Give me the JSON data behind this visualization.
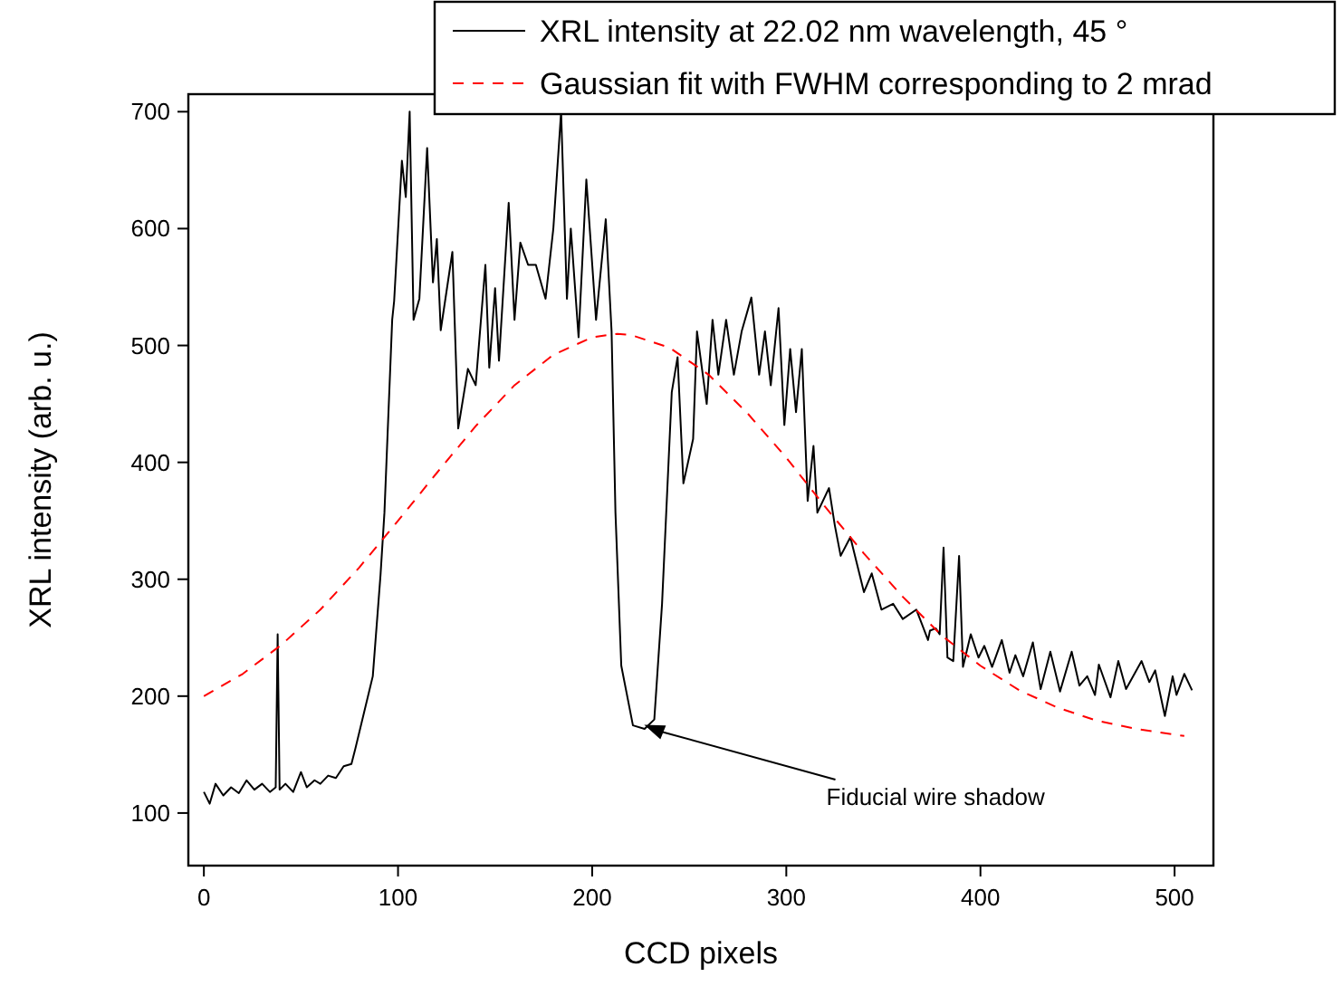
{
  "chart_data": {
    "type": "line",
    "xlabel": "CCD pixels",
    "ylabel": "XRL intensity (arb. u.)",
    "xlim": [
      -8,
      520
    ],
    "ylim": [
      55,
      715
    ],
    "xticks": [
      0,
      100,
      200,
      300,
      400,
      500
    ],
    "yticks": [
      100,
      200,
      300,
      400,
      500,
      600,
      700
    ],
    "legend": "top right",
    "grid": false,
    "series": [
      {
        "name": "XRL intensity at 22.02 nm wavelength, 45 °",
        "color": "#000000",
        "line_style": "solid",
        "x": [
          0,
          3,
          6,
          10,
          14,
          18,
          22,
          26,
          30,
          34,
          37,
          38,
          39,
          42,
          46,
          50,
          53,
          57,
          60,
          64,
          68,
          72,
          76,
          78,
          87,
          91,
          93,
          97,
          98,
          102,
          104,
          106,
          108,
          111,
          115,
          118,
          120,
          122,
          128,
          131,
          136,
          140,
          145,
          147,
          150,
          152,
          157,
          160,
          163,
          167,
          171,
          176,
          180,
          184,
          187,
          189,
          193,
          197,
          202,
          207,
          210,
          212,
          215,
          221,
          227,
          232,
          236,
          241,
          244,
          247,
          252,
          254,
          259,
          262,
          265,
          269,
          273,
          277,
          282,
          286,
          289,
          292,
          296,
          299,
          302,
          305,
          308,
          311,
          314,
          316,
          322,
          325,
          328,
          333,
          340,
          344,
          349,
          355,
          360,
          367,
          373,
          374,
          377,
          379,
          381,
          383,
          386,
          389,
          391,
          395,
          399,
          402,
          406,
          411,
          415,
          418,
          422,
          427,
          431,
          436,
          441,
          447,
          451,
          455,
          459,
          461,
          467,
          471,
          475,
          483,
          487,
          490,
          495,
          499,
          501,
          505,
          509
        ],
        "values": [
          118,
          108,
          125,
          115,
          122,
          117,
          128,
          120,
          125,
          118,
          122,
          253,
          120,
          125,
          118,
          135,
          122,
          128,
          125,
          132,
          130,
          140,
          142,
          155,
          217,
          304,
          357,
          522,
          538,
          658,
          627,
          700,
          522,
          540,
          669,
          554,
          591,
          513,
          580,
          429,
          480,
          466,
          569,
          481,
          549,
          487,
          622,
          522,
          588,
          569,
          569,
          540,
          600,
          700,
          540,
          600,
          507,
          642,
          522,
          608,
          512,
          357,
          226,
          175,
          172,
          180,
          279,
          460,
          490,
          382,
          420,
          512,
          450,
          522,
          475,
          522,
          475,
          512,
          541,
          475,
          512,
          466,
          532,
          432,
          497,
          443,
          497,
          367,
          414,
          357,
          378,
          346,
          320,
          336,
          289,
          305,
          274,
          279,
          266,
          274,
          248,
          256,
          258,
          253,
          327,
          233,
          230,
          320,
          225,
          253,
          233,
          243,
          225,
          248,
          220,
          235,
          217,
          246,
          206,
          238,
          204,
          238,
          209,
          217,
          201,
          227,
          199,
          230,
          206,
          230,
          212,
          222,
          183,
          217,
          201,
          219,
          205
        ]
      },
      {
        "name": "Gaussian fit with FWHM corresponding to 2 mrad",
        "color": "#ff0000",
        "line_style": "dashed",
        "x": [
          0,
          20,
          40,
          60,
          80,
          100,
          120,
          140,
          160,
          180,
          200,
          213,
          220,
          240,
          260,
          280,
          300,
          320,
          340,
          360,
          380,
          400,
          420,
          440,
          460,
          480,
          500,
          505
        ],
        "values": [
          200,
          219,
          244,
          274,
          310,
          350,
          391,
          431,
          466,
          492,
          507,
          510,
          509,
          498,
          475,
          442,
          404,
          362,
          322,
          285,
          252,
          226,
          205,
          190,
          179,
          172,
          167,
          166
        ]
      }
    ],
    "annotations": [
      {
        "text": "Fiducial wire shadow",
        "x": 232,
        "y": 172
      }
    ]
  }
}
